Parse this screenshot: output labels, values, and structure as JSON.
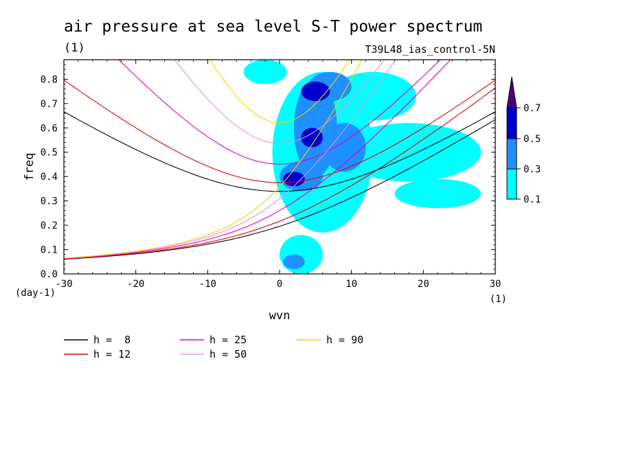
{
  "chart_data": {
    "type": "heatmap",
    "title": "air pressure at sea level S-T power spectrum",
    "title_unit": "(1)",
    "subtitle": "T39L48_ias_control-5N",
    "xlabel": "wvn",
    "ylabel": "freq",
    "x_unit": "(1)",
    "y_unit": "(day-1)",
    "xlim": [
      -30,
      30
    ],
    "ylim": [
      0,
      0.88
    ],
    "x_ticks": [
      "-30",
      "-20",
      "-10",
      "0",
      "10",
      "20",
      "30"
    ],
    "y_ticks": [
      "0.0",
      "0.1",
      "0.2",
      "0.3",
      "0.4",
      "0.5",
      "0.6",
      "0.7",
      "0.8"
    ],
    "colorbar": {
      "levels": [
        "0.1",
        "0.3",
        "0.5",
        "0.7"
      ],
      "colors": [
        "#00ffff",
        "#1e90ff",
        "#0000cd",
        "#4b0082"
      ],
      "extend": "max"
    },
    "contour_regions": [
      {
        "level": 0.1,
        "center": [
          6,
          0.5
        ],
        "half_width": [
          7,
          0.33
        ]
      },
      {
        "level": 0.1,
        "center": [
          3,
          0.08
        ],
        "half_width": [
          3,
          0.08
        ]
      },
      {
        "level": 0.1,
        "center": [
          18,
          0.5
        ],
        "half_width": [
          10,
          0.12
        ]
      },
      {
        "level": 0.1,
        "center": [
          13,
          0.73
        ],
        "half_width": [
          6,
          0.1
        ]
      },
      {
        "level": 0.1,
        "center": [
          22,
          0.33
        ],
        "half_width": [
          6,
          0.06
        ]
      },
      {
        "level": 0.1,
        "center": [
          -2,
          0.83
        ],
        "half_width": [
          3,
          0.05
        ]
      },
      {
        "level": 0.3,
        "center": [
          5,
          0.6
        ],
        "half_width": [
          3,
          0.2
        ]
      },
      {
        "level": 0.3,
        "center": [
          3,
          0.4
        ],
        "half_width": [
          3,
          0.06
        ]
      },
      {
        "level": 0.3,
        "center": [
          7,
          0.77
        ],
        "half_width": [
          3,
          0.06
        ]
      },
      {
        "level": 0.3,
        "center": [
          9,
          0.52
        ],
        "half_width": [
          3,
          0.1
        ]
      },
      {
        "level": 0.3,
        "center": [
          2,
          0.05
        ],
        "half_width": [
          1.5,
          0.03
        ]
      },
      {
        "level": 0.5,
        "center": [
          5,
          0.75
        ],
        "half_width": [
          2,
          0.04
        ]
      },
      {
        "level": 0.5,
        "center": [
          2,
          0.39
        ],
        "half_width": [
          1.5,
          0.03
        ]
      },
      {
        "level": 0.5,
        "center": [
          4.5,
          0.56
        ],
        "half_width": [
          1.5,
          0.04
        ]
      }
    ],
    "series": [
      {
        "name": "h =  8",
        "color": "#000000",
        "h": 8
      },
      {
        "name": "h = 12",
        "color": "#e00000",
        "h": 12
      },
      {
        "name": "h = 25",
        "color": "#e000c0",
        "h": 25
      },
      {
        "name": "h = 50",
        "color": "#e890e0",
        "h": 50
      },
      {
        "name": "h = 90",
        "color": "#f0d000",
        "h": 90
      }
    ]
  }
}
